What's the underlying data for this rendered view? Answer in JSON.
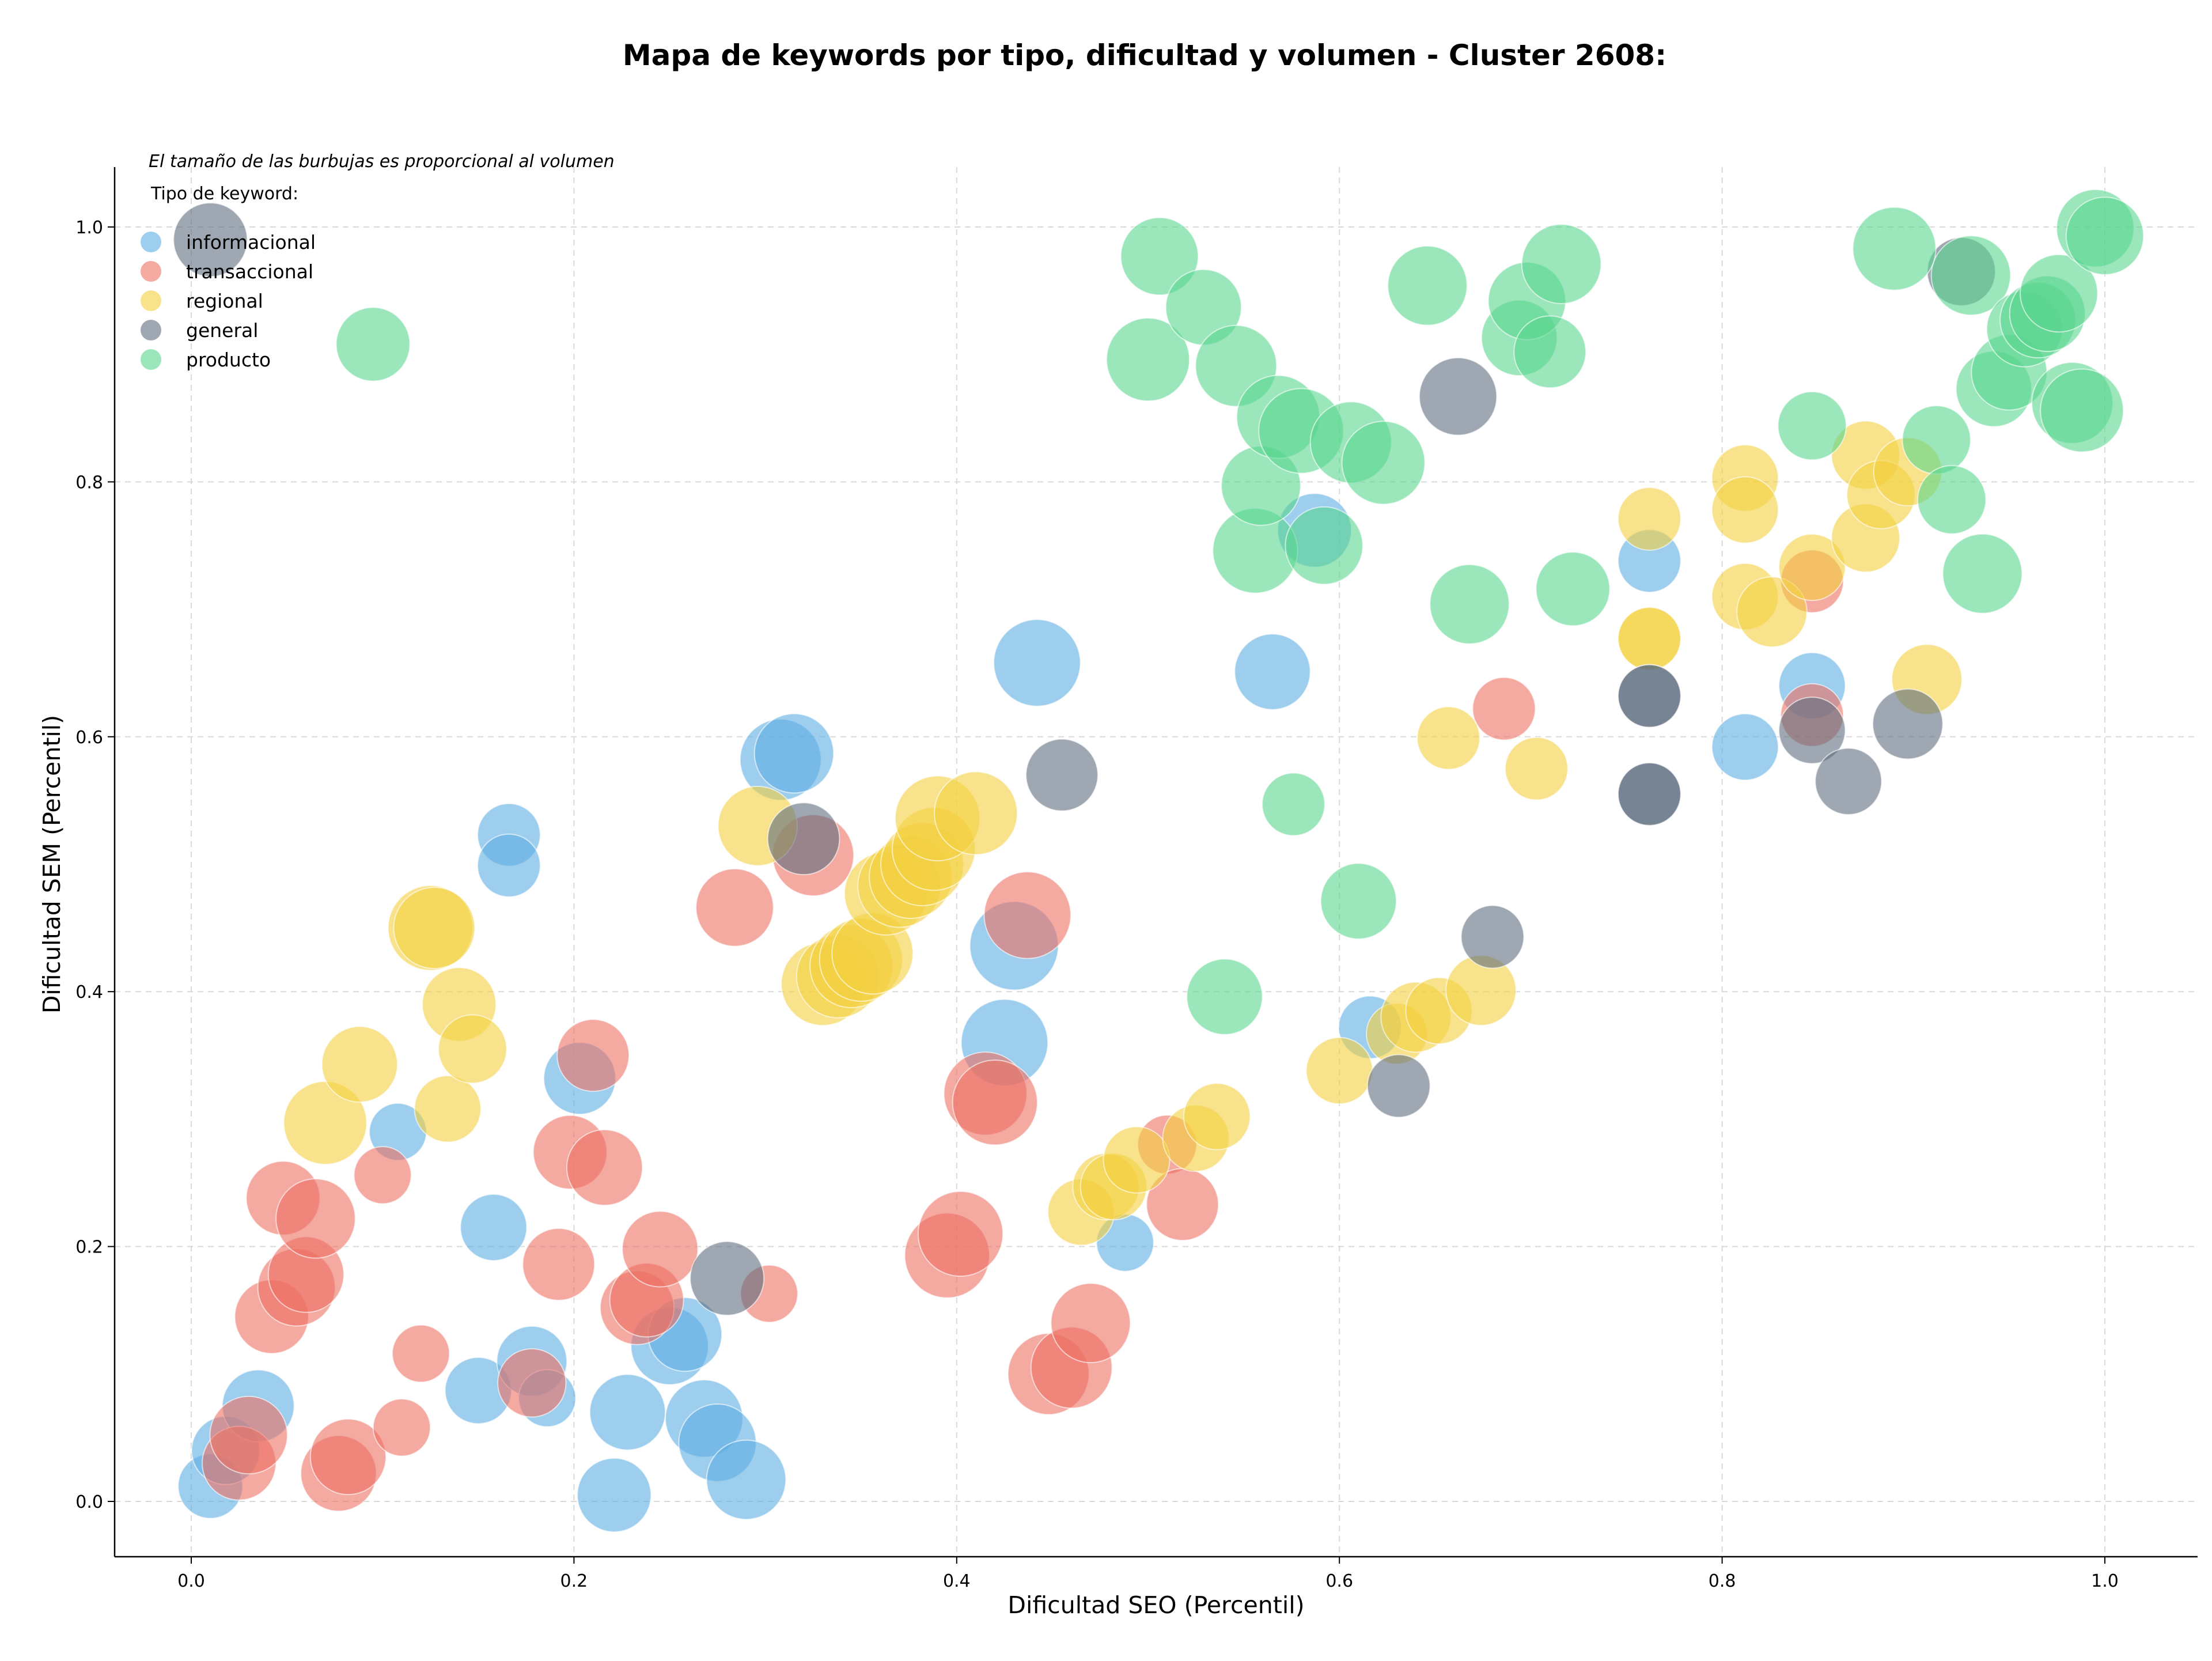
{
  "chart_data": {
    "type": "scatter",
    "title": "Mapa de keywords por tipo, dificultad y volumen - Cluster 2608:",
    "xlabel": "Dificultad SEO (Percentil)",
    "ylabel": "Dificultad SEM (Percentil)",
    "xlim": [
      -0.04,
      1.05
    ],
    "ylim": [
      -0.043,
      1.05
    ],
    "xticks": [
      "0.0",
      "0.2",
      "0.4",
      "0.6",
      "0.8",
      "1.0"
    ],
    "yticks": [
      "0.0",
      "0.2",
      "0.4",
      "0.6",
      "0.8",
      "1.0"
    ],
    "grid": true,
    "note": "El tamaño de las burbujas es proporcional al volumen",
    "legend": {
      "title": "Tipo de keyword:",
      "placement": "top-left"
    },
    "series": [
      {
        "name": "informacional",
        "color": "#5DADE2",
        "points": [
          [
            0.01,
            0.012,
            0.5
          ],
          [
            0.018,
            0.04,
            0.6
          ],
          [
            0.035,
            0.075,
            0.7
          ],
          [
            0.108,
            0.29,
            0.3
          ],
          [
            0.15,
            0.087,
            0.55
          ],
          [
            0.158,
            0.215,
            0.55
          ],
          [
            0.166,
            0.523,
            0.45
          ],
          [
            0.166,
            0.499,
            0.45
          ],
          [
            0.178,
            0.11,
            0.65
          ],
          [
            0.186,
            0.081,
            0.3
          ],
          [
            0.203,
            0.332,
            0.7
          ],
          [
            0.221,
            0.005,
            0.75
          ],
          [
            0.228,
            0.07,
            0.8
          ],
          [
            0.25,
            0.122,
            0.85
          ],
          [
            0.258,
            0.131,
            0.75
          ],
          [
            0.268,
            0.065,
            0.85
          ],
          [
            0.275,
            0.046,
            0.85
          ],
          [
            0.29,
            0.017,
            0.9
          ],
          [
            0.308,
            0.582,
            0.95
          ],
          [
            0.315,
            0.587,
            0.9
          ],
          [
            0.43,
            0.436,
            1.15
          ],
          [
            0.425,
            0.36,
            1.1
          ],
          [
            0.442,
            0.658,
            1.1
          ],
          [
            0.488,
            0.203,
            0.3
          ],
          [
            0.565,
            0.651,
            0.8
          ],
          [
            0.587,
            0.762,
            0.75
          ],
          [
            0.616,
            0.372,
            0.45
          ],
          [
            0.762,
            0.738,
            0.45
          ],
          [
            0.812,
            0.592,
            0.55
          ],
          [
            0.847,
            0.64,
            0.55
          ]
        ]
      },
      {
        "name": "transaccional",
        "color": "#EC7063",
        "points": [
          [
            0.025,
            0.03,
            0.75
          ],
          [
            0.03,
            0.052,
            0.85
          ],
          [
            0.042,
            0.145,
            0.75
          ],
          [
            0.048,
            0.238,
            0.75
          ],
          [
            0.055,
            0.168,
            0.85
          ],
          [
            0.06,
            0.178,
            0.8
          ],
          [
            0.065,
            0.222,
            0.9
          ],
          [
            0.077,
            0.022,
            0.8
          ],
          [
            0.082,
            0.035,
            0.8
          ],
          [
            0.1,
            0.256,
            0.3
          ],
          [
            0.11,
            0.058,
            0.3
          ],
          [
            0.12,
            0.116,
            0.3
          ],
          [
            0.178,
            0.093,
            0.6
          ],
          [
            0.192,
            0.186,
            0.7
          ],
          [
            0.198,
            0.274,
            0.75
          ],
          [
            0.21,
            0.35,
            0.7
          ],
          [
            0.216,
            0.262,
            0.8
          ],
          [
            0.233,
            0.152,
            0.75
          ],
          [
            0.238,
            0.158,
            0.75
          ],
          [
            0.245,
            0.198,
            0.8
          ],
          [
            0.284,
            0.466,
            0.85
          ],
          [
            0.302,
            0.163,
            0.3
          ],
          [
            0.325,
            0.507,
            0.95
          ],
          [
            0.395,
            0.193,
            1.05
          ],
          [
            0.402,
            0.21,
            1.05
          ],
          [
            0.415,
            0.32,
            1.0
          ],
          [
            0.42,
            0.313,
            1.05
          ],
          [
            0.437,
            0.46,
            1.1
          ],
          [
            0.448,
            0.1,
            0.95
          ],
          [
            0.46,
            0.105,
            0.95
          ],
          [
            0.47,
            0.14,
            0.9
          ],
          [
            0.51,
            0.28,
            0.35
          ],
          [
            0.518,
            0.233,
            0.7
          ],
          [
            0.686,
            0.622,
            0.45
          ],
          [
            0.847,
            0.722,
            0.45
          ],
          [
            0.847,
            0.617,
            0.45
          ]
        ]
      },
      {
        "name": "regional",
        "color": "#F4D03F",
        "points": [
          [
            0.07,
            0.297,
            1.0
          ],
          [
            0.088,
            0.343,
            0.8
          ],
          [
            0.125,
            0.45,
            1.05
          ],
          [
            0.127,
            0.45,
            0.95
          ],
          [
            0.134,
            0.308,
            0.55
          ],
          [
            0.14,
            0.39,
            0.75
          ],
          [
            0.147,
            0.355,
            0.6
          ],
          [
            0.296,
            0.53,
            0.9
          ],
          [
            0.33,
            0.406,
            1.0
          ],
          [
            0.338,
            0.412,
            1.0
          ],
          [
            0.345,
            0.42,
            1.0
          ],
          [
            0.35,
            0.425,
            1.0
          ],
          [
            0.356,
            0.43,
            0.95
          ],
          [
            0.363,
            0.477,
            1.0
          ],
          [
            0.37,
            0.483,
            1.0
          ],
          [
            0.376,
            0.49,
            1.0
          ],
          [
            0.382,
            0.5,
            1.0
          ],
          [
            0.388,
            0.512,
            1.0
          ],
          [
            0.39,
            0.536,
            1.05
          ],
          [
            0.41,
            0.54,
            1.0
          ],
          [
            0.465,
            0.227,
            0.55
          ],
          [
            0.478,
            0.247,
            0.55
          ],
          [
            0.482,
            0.247,
            0.55
          ],
          [
            0.494,
            0.268,
            0.55
          ],
          [
            0.525,
            0.285,
            0.55
          ],
          [
            0.536,
            0.302,
            0.55
          ],
          [
            0.6,
            0.338,
            0.55
          ],
          [
            0.63,
            0.367,
            0.4
          ],
          [
            0.64,
            0.38,
            0.65
          ],
          [
            0.652,
            0.385,
            0.55
          ],
          [
            0.657,
            0.599,
            0.45
          ],
          [
            0.674,
            0.401,
            0.65
          ],
          [
            0.703,
            0.575,
            0.45
          ],
          [
            0.762,
            0.771,
            0.45
          ],
          [
            0.762,
            0.677,
            0.45
          ],
          [
            0.762,
            0.677,
            0.45
          ],
          [
            0.812,
            0.803,
            0.55
          ],
          [
            0.812,
            0.778,
            0.55
          ],
          [
            0.812,
            0.71,
            0.55
          ],
          [
            0.826,
            0.698,
            0.65
          ],
          [
            0.847,
            0.733,
            0.55
          ],
          [
            0.875,
            0.821,
            0.6
          ],
          [
            0.875,
            0.756,
            0.6
          ],
          [
            0.883,
            0.79,
            0.6
          ],
          [
            0.897,
            0.808,
            0.6
          ],
          [
            0.907,
            0.645,
            0.65
          ]
        ]
      },
      {
        "name": "general",
        "color": "#5D6D7E",
        "points": [
          [
            0.01,
            0.99,
            0.75
          ],
          [
            0.28,
            0.175,
            0.75
          ],
          [
            0.32,
            0.52,
            0.7
          ],
          [
            0.455,
            0.57,
            0.7
          ],
          [
            0.631,
            0.326,
            0.45
          ],
          [
            0.662,
            0.867,
            0.85
          ],
          [
            0.68,
            0.443,
            0.45
          ],
          [
            0.762,
            0.632,
            0.45
          ],
          [
            0.762,
            0.632,
            0.45
          ],
          [
            0.762,
            0.555,
            0.45
          ],
          [
            0.762,
            0.555,
            0.45
          ],
          [
            0.847,
            0.605,
            0.55
          ],
          [
            0.866,
            0.565,
            0.55
          ],
          [
            0.897,
            0.61,
            0.65
          ],
          [
            0.925,
            0.965,
            0.6
          ]
        ]
      },
      {
        "name": "producto",
        "color": "#58D68D",
        "points": [
          [
            0.095,
            0.908,
            0.75
          ],
          [
            0.5,
            0.896,
            1.0
          ],
          [
            0.506,
            0.977,
            0.85
          ],
          [
            0.529,
            0.937,
            0.8
          ],
          [
            0.546,
            0.891,
            0.95
          ],
          [
            0.556,
            0.746,
            1.05
          ],
          [
            0.559,
            0.797,
            0.9
          ],
          [
            0.568,
            0.851,
            1.0
          ],
          [
            0.58,
            0.84,
            1.05
          ],
          [
            0.592,
            0.75,
            0.85
          ],
          [
            0.606,
            0.831,
            0.95
          ],
          [
            0.623,
            0.815,
            1.0
          ],
          [
            0.61,
            0.471,
            0.8
          ],
          [
            0.54,
            0.396,
            0.8
          ],
          [
            0.576,
            0.547,
            0.45
          ],
          [
            0.646,
            0.954,
            0.9
          ],
          [
            0.668,
            0.704,
            0.9
          ],
          [
            0.694,
            0.913,
            0.8
          ],
          [
            0.698,
            0.942,
            0.85
          ],
          [
            0.71,
            0.902,
            0.7
          ],
          [
            0.716,
            0.971,
            0.9
          ],
          [
            0.722,
            0.716,
            0.75
          ],
          [
            0.847,
            0.844,
            0.6
          ],
          [
            0.912,
            0.833,
            0.6
          ],
          [
            0.92,
            0.786,
            0.6
          ],
          [
            0.93,
            0.962,
            0.9
          ],
          [
            0.936,
            0.728,
            0.9
          ],
          [
            0.942,
            0.873,
            0.8
          ],
          [
            0.95,
            0.886,
            0.8
          ],
          [
            0.958,
            0.92,
            0.8
          ],
          [
            0.965,
            0.927,
            0.8
          ],
          [
            0.97,
            0.932,
            0.8
          ],
          [
            0.976,
            0.948,
            0.85
          ],
          [
            0.983,
            0.862,
            0.95
          ],
          [
            0.988,
            0.856,
            1.0
          ],
          [
            0.89,
            0.983,
            1.0
          ],
          [
            0.995,
            0.999,
            0.85
          ],
          [
            1.0,
            0.993,
            0.85
          ]
        ]
      }
    ]
  }
}
